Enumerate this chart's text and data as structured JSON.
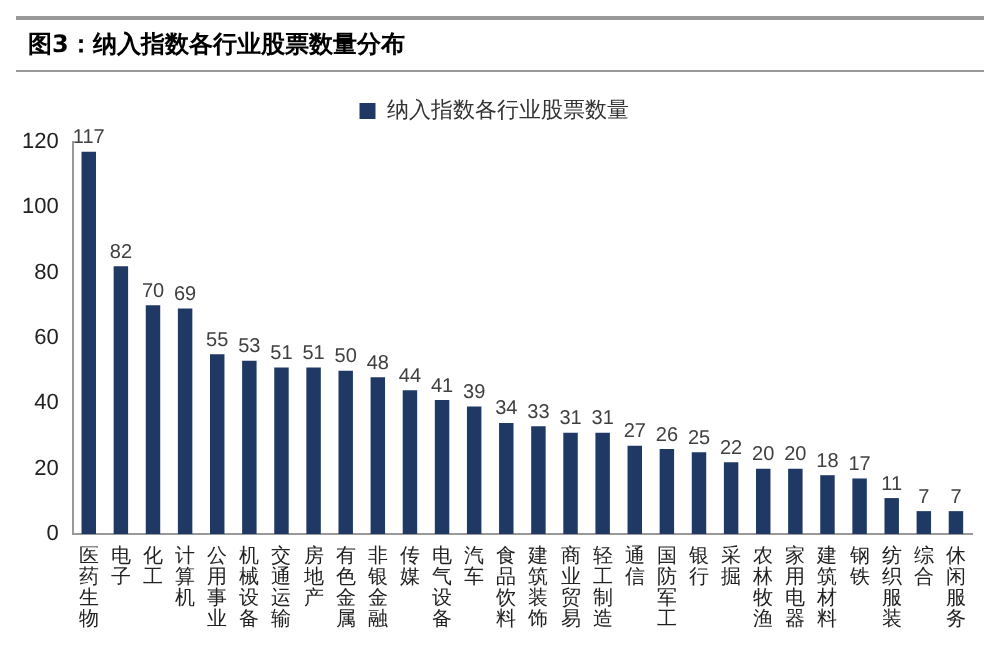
{
  "chart_data": {
    "type": "bar",
    "title": "图3：纳入指数各行业股票数量分布",
    "categories": [
      "医药生物",
      "电子",
      "化工",
      "计算机",
      "公用事业",
      "机械设备",
      "交通运输",
      "房地产",
      "有色金属",
      "非银金融",
      "传媒",
      "电气设备",
      "汽车",
      "食品饮料",
      "建筑装饰",
      "商业贸易",
      "轻工制造",
      "通信",
      "国防军工",
      "银行",
      "采掘",
      "农林牧渔",
      "家用电器",
      "建筑材料",
      "钢铁",
      "纺织服装",
      "综合",
      "休闲服务"
    ],
    "series": [
      {
        "name": "纳入指数各行业股票数量",
        "color": "#1f3864",
        "values": [
          117,
          82,
          70,
          69,
          55,
          53,
          51,
          51,
          50,
          48,
          44,
          41,
          39,
          34,
          33,
          31,
          31,
          27,
          26,
          25,
          22,
          20,
          20,
          18,
          17,
          11,
          7,
          7
        ]
      }
    ],
    "ylim": [
      0,
      120
    ],
    "yticks": [
      0,
      20,
      40,
      60,
      80,
      100,
      120
    ],
    "grid": false,
    "legend": "top",
    "data_labels": true
  }
}
